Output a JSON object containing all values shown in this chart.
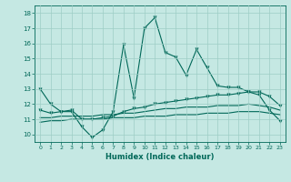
{
  "xlabel": "Humidex (Indice chaleur)",
  "xlim": [
    -0.5,
    23.5
  ],
  "ylim": [
    9.5,
    18.5
  ],
  "xticks": [
    0,
    1,
    2,
    3,
    4,
    5,
    6,
    7,
    8,
    9,
    10,
    11,
    12,
    13,
    14,
    15,
    16,
    17,
    18,
    19,
    20,
    21,
    22,
    23
  ],
  "yticks": [
    10,
    11,
    12,
    13,
    14,
    15,
    16,
    17,
    18
  ],
  "background_color": "#c5e8e3",
  "grid_color": "#9ecdc5",
  "line_color": "#006858",
  "line1_x": [
    0,
    1,
    2,
    3,
    4,
    5,
    6,
    7,
    8,
    9,
    10,
    11,
    12,
    13,
    14,
    15,
    16,
    17,
    18,
    19,
    20,
    21,
    22,
    23
  ],
  "line1_y": [
    13.0,
    12.0,
    11.5,
    11.5,
    10.5,
    9.8,
    10.3,
    11.5,
    15.9,
    12.4,
    17.0,
    17.7,
    15.4,
    15.1,
    13.9,
    15.6,
    14.4,
    13.2,
    13.1,
    13.1,
    12.8,
    12.6,
    11.6,
    10.9
  ],
  "line2_x": [
    0,
    1,
    2,
    3,
    4,
    5,
    6,
    7,
    8,
    9,
    10,
    11,
    12,
    13,
    14,
    15,
    16,
    17,
    18,
    19,
    20,
    21,
    22,
    23
  ],
  "line2_y": [
    11.6,
    11.4,
    11.5,
    11.6,
    11.0,
    11.0,
    11.1,
    11.2,
    11.5,
    11.7,
    11.8,
    12.0,
    12.1,
    12.2,
    12.3,
    12.4,
    12.5,
    12.6,
    12.6,
    12.7,
    12.8,
    12.8,
    12.5,
    11.9
  ],
  "line3_x": [
    0,
    1,
    2,
    3,
    4,
    5,
    6,
    7,
    8,
    9,
    10,
    11,
    12,
    13,
    14,
    15,
    16,
    17,
    18,
    19,
    20,
    21,
    22,
    23
  ],
  "line3_y": [
    11.1,
    11.1,
    11.2,
    11.2,
    11.2,
    11.2,
    11.3,
    11.3,
    11.4,
    11.4,
    11.5,
    11.6,
    11.7,
    11.7,
    11.8,
    11.8,
    11.8,
    11.9,
    11.9,
    11.9,
    12.0,
    11.9,
    11.8,
    11.6
  ],
  "line4_x": [
    0,
    1,
    2,
    3,
    4,
    5,
    6,
    7,
    8,
    9,
    10,
    11,
    12,
    13,
    14,
    15,
    16,
    17,
    18,
    19,
    20,
    21,
    22,
    23
  ],
  "line4_y": [
    10.8,
    10.9,
    10.9,
    11.0,
    11.0,
    11.0,
    11.0,
    11.1,
    11.1,
    11.1,
    11.2,
    11.2,
    11.2,
    11.3,
    11.3,
    11.3,
    11.4,
    11.4,
    11.4,
    11.5,
    11.5,
    11.5,
    11.4,
    11.3
  ]
}
